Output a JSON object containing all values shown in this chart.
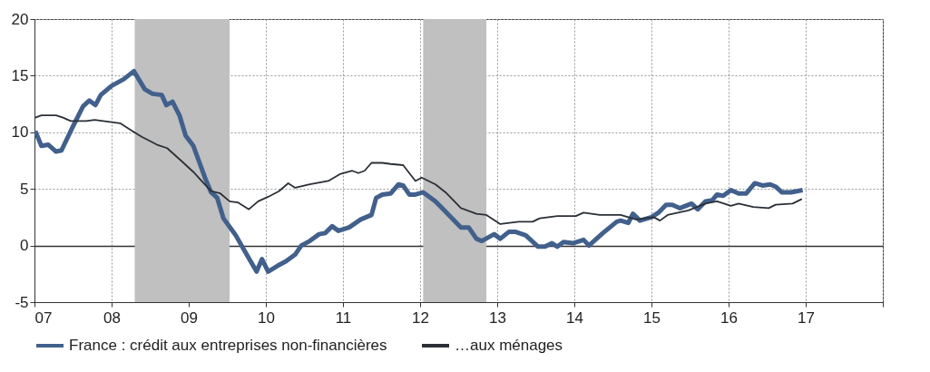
{
  "chart_data": {
    "type": "line",
    "xlim": [
      2007,
      2018
    ],
    "ylim": [
      -5,
      20
    ],
    "xticks": [
      {
        "value": 2007,
        "label": "07"
      },
      {
        "value": 2008,
        "label": "08"
      },
      {
        "value": 2009,
        "label": "09"
      },
      {
        "value": 2010,
        "label": "10"
      },
      {
        "value": 2011,
        "label": "11"
      },
      {
        "value": 2012,
        "label": "12"
      },
      {
        "value": 2013,
        "label": "13"
      },
      {
        "value": 2014,
        "label": "14"
      },
      {
        "value": 2015,
        "label": "15"
      },
      {
        "value": 2016,
        "label": "16"
      },
      {
        "value": 2017,
        "label": "17"
      },
      {
        "value": 2018,
        "label": null
      }
    ],
    "yticks": [
      -5,
      0,
      5,
      10,
      15,
      20
    ],
    "grid": true,
    "legend": "bottom",
    "bands": [
      {
        "axis": "x",
        "from": 2008.3,
        "to": 2009.53,
        "color": "#c0c0c0"
      },
      {
        "axis": "x",
        "from": 2012.04,
        "to": 2012.86,
        "color": "#c0c0c0"
      }
    ],
    "series": [
      {
        "name": "France : crédit aux entreprises non-financières",
        "color": "#41608c",
        "x": [
          2007.01,
          2007.09,
          2007.18,
          2007.28,
          2007.35,
          2007.49,
          2007.63,
          2007.71,
          2007.79,
          2007.86,
          2008.0,
          2008.16,
          2008.29,
          2008.43,
          2008.53,
          2008.65,
          2008.71,
          2008.79,
          2008.88,
          2008.96,
          2009.06,
          2009.13,
          2009.21,
          2009.29,
          2009.37,
          2009.45,
          2009.61,
          2009.76,
          2009.88,
          2009.95,
          2010.03,
          2010.15,
          2010.26,
          2010.38,
          2010.46,
          2010.57,
          2010.69,
          2010.77,
          2010.86,
          2010.94,
          2011.08,
          2011.23,
          2011.37,
          2011.43,
          2011.51,
          2011.62,
          2011.72,
          2011.78,
          2011.86,
          2011.94,
          2012.04,
          2012.2,
          2012.33,
          2012.53,
          2012.63,
          2012.73,
          2012.8,
          2012.96,
          2013.04,
          2013.15,
          2013.24,
          2013.37,
          2013.53,
          2013.62,
          2013.71,
          2013.78,
          2013.86,
          2013.98,
          2014.12,
          2014.19,
          2014.37,
          2014.55,
          2014.6,
          2014.7,
          2014.76,
          2014.85,
          2015.0,
          2015.09,
          2015.19,
          2015.27,
          2015.37,
          2015.52,
          2015.6,
          2015.7,
          2015.79,
          2015.85,
          2015.93,
          2016.03,
          2016.13,
          2016.23,
          2016.34,
          2016.44,
          2016.54,
          2016.61,
          2016.69,
          2016.81,
          2016.96
        ],
        "values": [
          10.1,
          8.8,
          8.9,
          8.3,
          8.4,
          10.4,
          12.3,
          12.8,
          12.4,
          13.3,
          14.1,
          14.7,
          15.4,
          13.8,
          13.4,
          13.3,
          12.4,
          12.7,
          11.5,
          9.7,
          8.8,
          7.5,
          6.0,
          4.7,
          4.2,
          2.4,
          0.9,
          -0.9,
          -2.3,
          -1.2,
          -2.3,
          -1.8,
          -1.4,
          -0.8,
          0.0,
          0.4,
          1.0,
          1.1,
          1.7,
          1.3,
          1.6,
          2.3,
          2.7,
          4.2,
          4.5,
          4.6,
          5.4,
          5.3,
          4.5,
          4.5,
          4.7,
          3.9,
          3.0,
          1.6,
          1.6,
          0.6,
          0.4,
          1.0,
          0.6,
          1.2,
          1.2,
          0.9,
          -0.1,
          -0.1,
          0.2,
          -0.1,
          0.3,
          0.2,
          0.5,
          0.0,
          1.1,
          2.1,
          2.2,
          2.0,
          2.8,
          2.2,
          2.5,
          2.9,
          3.6,
          3.6,
          3.3,
          3.7,
          3.2,
          3.9,
          4.0,
          4.5,
          4.4,
          4.9,
          4.6,
          4.6,
          5.5,
          5.3,
          5.4,
          5.2,
          4.7,
          4.7,
          4.9
        ]
      },
      {
        "name": "…aux ménages",
        "color": "#2b2f36",
        "x": [
          2007.01,
          2007.09,
          2007.28,
          2007.37,
          2007.47,
          2007.67,
          2007.78,
          2008.0,
          2008.11,
          2008.27,
          2008.39,
          2008.59,
          2008.72,
          2008.9,
          2009.06,
          2009.18,
          2009.29,
          2009.41,
          2009.53,
          2009.64,
          2009.78,
          2009.9,
          2010.03,
          2010.17,
          2010.29,
          2010.38,
          2010.57,
          2010.81,
          2010.96,
          2011.12,
          2011.2,
          2011.28,
          2011.37,
          2011.51,
          2011.62,
          2011.78,
          2011.94,
          2012.02,
          2012.2,
          2012.33,
          2012.53,
          2012.73,
          2012.86,
          2013.04,
          2013.28,
          2013.46,
          2013.55,
          2013.78,
          2014.02,
          2014.12,
          2014.33,
          2014.6,
          2014.8,
          2015.03,
          2015.11,
          2015.21,
          2015.48,
          2015.7,
          2015.85,
          2016.03,
          2016.13,
          2016.32,
          2016.52,
          2016.61,
          2016.83,
          2016.95
        ],
        "values": [
          11.3,
          11.5,
          11.5,
          11.3,
          11.0,
          11.0,
          11.1,
          10.9,
          10.8,
          10.1,
          9.6,
          8.9,
          8.6,
          7.5,
          6.5,
          5.6,
          4.8,
          4.6,
          3.9,
          3.8,
          3.2,
          3.9,
          4.3,
          4.8,
          5.5,
          5.1,
          5.4,
          5.7,
          6.3,
          6.6,
          6.4,
          6.6,
          7.3,
          7.3,
          7.2,
          7.1,
          5.7,
          6.0,
          5.4,
          4.7,
          3.3,
          2.8,
          2.7,
          1.9,
          2.1,
          2.1,
          2.4,
          2.6,
          2.6,
          2.9,
          2.7,
          2.7,
          2.3,
          2.5,
          2.2,
          2.7,
          3.1,
          3.7,
          3.9,
          3.5,
          3.7,
          3.4,
          3.3,
          3.6,
          3.7,
          4.1
        ]
      }
    ]
  }
}
